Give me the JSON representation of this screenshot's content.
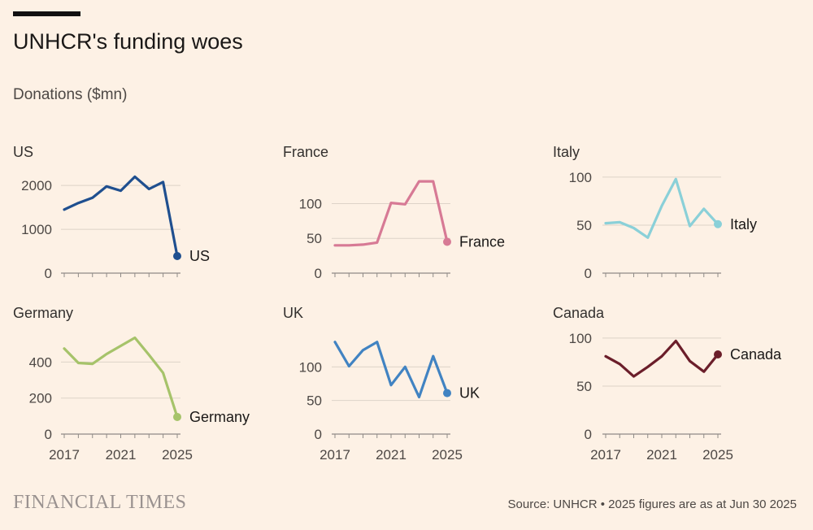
{
  "title": "UNHCR's funding woes",
  "subtitle": "Donations ($mn)",
  "brand": "FINANCIAL TIMES",
  "source": "Source: UNHCR • 2025 figures are as at Jun 30 2025",
  "chart_data": [
    {
      "type": "line",
      "title": "US",
      "label": "US",
      "color": "#1f4f8f",
      "x": [
        2017,
        2018,
        2019,
        2020,
        2021,
        2022,
        2023,
        2024,
        2025
      ],
      "values": [
        1450,
        1600,
        1720,
        1980,
        1880,
        2200,
        1920,
        2080,
        390
      ],
      "ylim": [
        0,
        2300
      ],
      "yticks": [
        0,
        1000,
        2000
      ],
      "xticks": []
    },
    {
      "type": "line",
      "title": "France",
      "label": "France",
      "color": "#d77a95",
      "x": [
        2017,
        2018,
        2019,
        2020,
        2021,
        2022,
        2023,
        2024,
        2025
      ],
      "values": [
        40,
        40,
        41,
        44,
        101,
        99,
        132,
        132,
        45
      ],
      "ylim": [
        0,
        145
      ],
      "yticks": [
        0,
        50,
        100
      ],
      "xticks": []
    },
    {
      "type": "line",
      "title": "Italy",
      "label": "Italy",
      "color": "#8ad0d8",
      "x": [
        2017,
        2018,
        2019,
        2020,
        2021,
        2022,
        2023,
        2024,
        2025
      ],
      "values": [
        52,
        53,
        47,
        37,
        70,
        98,
        49,
        67,
        51
      ],
      "ylim": [
        0,
        105
      ],
      "yticks": [
        0,
        50,
        100
      ],
      "xticks": []
    },
    {
      "type": "line",
      "title": "Germany",
      "label": "Germany",
      "color": "#a6c36a",
      "x": [
        2017,
        2018,
        2019,
        2020,
        2021,
        2022,
        2023,
        2024,
        2025
      ],
      "values": [
        475,
        395,
        390,
        445,
        490,
        535,
        440,
        340,
        95
      ],
      "ylim": [
        0,
        560
      ],
      "yticks": [
        0,
        200,
        400
      ],
      "xticks": [
        2017,
        2021,
        2025
      ]
    },
    {
      "type": "line",
      "title": "UK",
      "label": "UK",
      "color": "#4183c2",
      "x": [
        2017,
        2018,
        2019,
        2020,
        2021,
        2022,
        2023,
        2024,
        2025
      ],
      "values": [
        137,
        101,
        125,
        137,
        73,
        100,
        55,
        116,
        61
      ],
      "ylim": [
        0,
        150
      ],
      "yticks": [
        0,
        50,
        100
      ],
      "xticks": [
        2017,
        2021,
        2025
      ]
    },
    {
      "type": "line",
      "title": "Canada",
      "label": "Canada",
      "color": "#6b1e2a",
      "x": [
        2017,
        2018,
        2019,
        2020,
        2021,
        2022,
        2023,
        2024,
        2025
      ],
      "values": [
        81,
        73,
        60,
        70,
        81,
        97,
        76,
        65,
        83
      ],
      "ylim": [
        0,
        105
      ],
      "yticks": [
        0,
        50,
        100
      ],
      "xticks": [
        2017,
        2021,
        2025
      ]
    }
  ]
}
